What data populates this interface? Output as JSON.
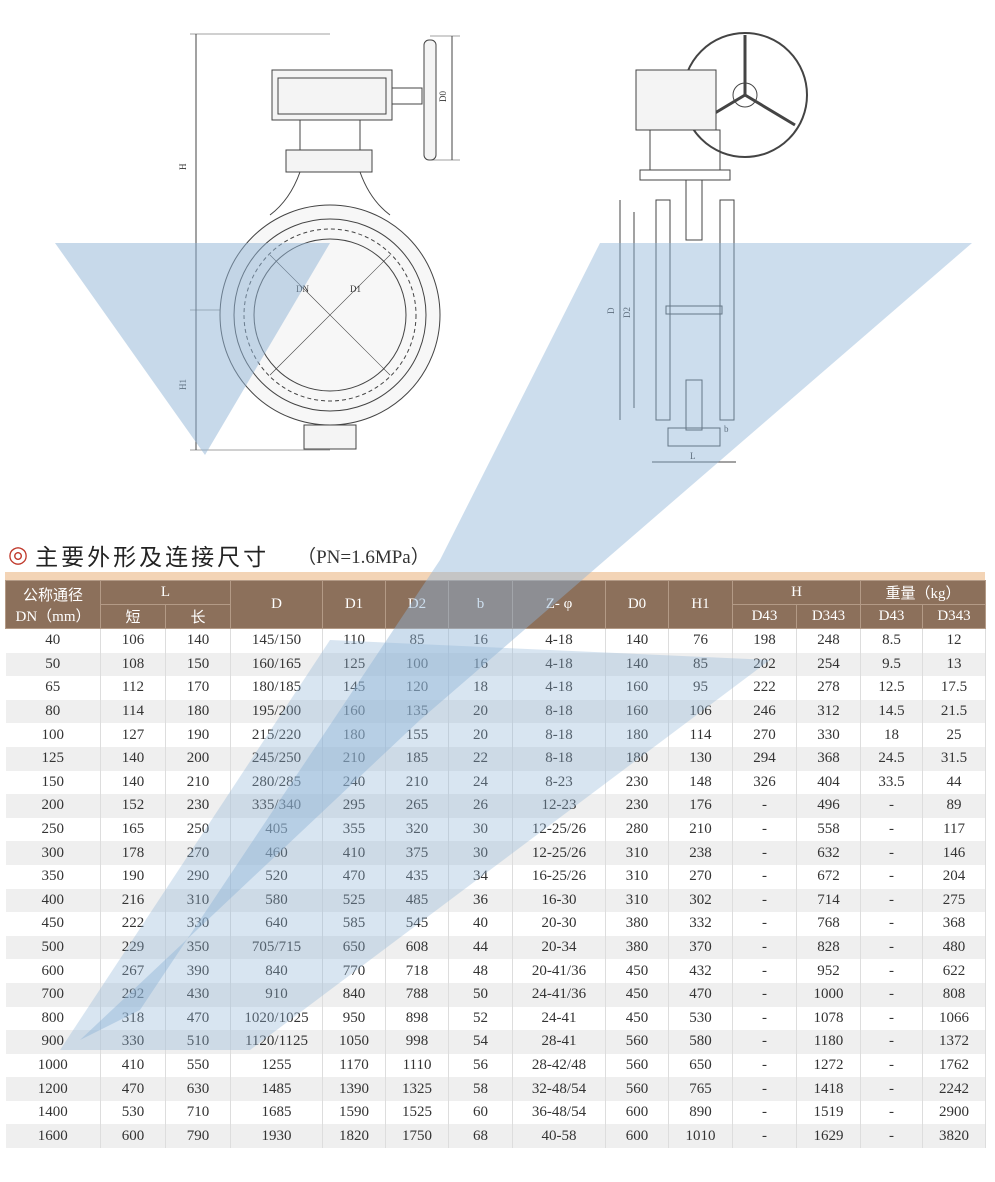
{
  "drawing": {
    "front_labels": {
      "H": "H",
      "D0": "D0",
      "DN": "DN",
      "D1": "D1",
      "H1": "H1"
    },
    "side_labels": {
      "D": "D",
      "D2": "D2",
      "b": "b",
      "L": "L"
    }
  },
  "section": {
    "mark": "◎",
    "title": "主要外形及连接尺寸",
    "pressure": "（PN=1.6MPa）"
  },
  "table": {
    "headers": {
      "dn": "公称通径",
      "dn_unit": "DN（mm）",
      "L": "L",
      "L_short": "短",
      "L_long": "长",
      "D": "D",
      "D1": "D1",
      "D2": "D2",
      "b": "b",
      "Z": "Z- φ",
      "D0": "D0",
      "H1": "H1",
      "H": "H",
      "H_D43": "D43",
      "H_D343": "D343",
      "weight": "重量（kg）",
      "W_D43": "D43",
      "W_D343": "D343"
    },
    "rows": [
      [
        "40",
        "106",
        "140",
        "145/150",
        "110",
        "85",
        "16",
        "4-18",
        "140",
        "76",
        "198",
        "248",
        "8.5",
        "12"
      ],
      [
        "50",
        "108",
        "150",
        "160/165",
        "125",
        "100",
        "16",
        "4-18",
        "140",
        "85",
        "202",
        "254",
        "9.5",
        "13"
      ],
      [
        "65",
        "112",
        "170",
        "180/185",
        "145",
        "120",
        "18",
        "4-18",
        "160",
        "95",
        "222",
        "278",
        "12.5",
        "17.5"
      ],
      [
        "80",
        "114",
        "180",
        "195/200",
        "160",
        "135",
        "20",
        "8-18",
        "160",
        "106",
        "246",
        "312",
        "14.5",
        "21.5"
      ],
      [
        "100",
        "127",
        "190",
        "215/220",
        "180",
        "155",
        "20",
        "8-18",
        "180",
        "114",
        "270",
        "330",
        "18",
        "25"
      ],
      [
        "125",
        "140",
        "200",
        "245/250",
        "210",
        "185",
        "22",
        "8-18",
        "180",
        "130",
        "294",
        "368",
        "24.5",
        "31.5"
      ],
      [
        "150",
        "140",
        "210",
        "280/285",
        "240",
        "210",
        "24",
        "8-23",
        "230",
        "148",
        "326",
        "404",
        "33.5",
        "44"
      ],
      [
        "200",
        "152",
        "230",
        "335/340",
        "295",
        "265",
        "26",
        "12-23",
        "230",
        "176",
        "-",
        "496",
        "-",
        "89"
      ],
      [
        "250",
        "165",
        "250",
        "405",
        "355",
        "320",
        "30",
        "12-25/26",
        "280",
        "210",
        "-",
        "558",
        "-",
        "117"
      ],
      [
        "300",
        "178",
        "270",
        "460",
        "410",
        "375",
        "30",
        "12-25/26",
        "310",
        "238",
        "-",
        "632",
        "-",
        "146"
      ],
      [
        "350",
        "190",
        "290",
        "520",
        "470",
        "435",
        "34",
        "16-25/26",
        "310",
        "270",
        "-",
        "672",
        "-",
        "204"
      ],
      [
        "400",
        "216",
        "310",
        "580",
        "525",
        "485",
        "36",
        "16-30",
        "310",
        "302",
        "-",
        "714",
        "-",
        "275"
      ],
      [
        "450",
        "222",
        "330",
        "640",
        "585",
        "545",
        "40",
        "20-30",
        "380",
        "332",
        "-",
        "768",
        "-",
        "368"
      ],
      [
        "500",
        "229",
        "350",
        "705/715",
        "650",
        "608",
        "44",
        "20-34",
        "380",
        "370",
        "-",
        "828",
        "-",
        "480"
      ],
      [
        "600",
        "267",
        "390",
        "840",
        "770",
        "718",
        "48",
        "20-41/36",
        "450",
        "432",
        "-",
        "952",
        "-",
        "622"
      ],
      [
        "700",
        "292",
        "430",
        "910",
        "840",
        "788",
        "50",
        "24-41/36",
        "450",
        "470",
        "-",
        "1000",
        "-",
        "808"
      ],
      [
        "800",
        "318",
        "470",
        "1020/1025",
        "950",
        "898",
        "52",
        "24-41",
        "450",
        "530",
        "-",
        "1078",
        "-",
        "1066"
      ],
      [
        "900",
        "330",
        "510",
        "1120/1125",
        "1050",
        "998",
        "54",
        "28-41",
        "560",
        "580",
        "-",
        "1180",
        "-",
        "1372"
      ],
      [
        "1000",
        "410",
        "550",
        "1255",
        "1170",
        "1110",
        "56",
        "28-42/48",
        "560",
        "650",
        "-",
        "1272",
        "-",
        "1762"
      ],
      [
        "1200",
        "470",
        "630",
        "1485",
        "1390",
        "1325",
        "58",
        "32-48/54",
        "560",
        "765",
        "-",
        "1418",
        "-",
        "2242"
      ],
      [
        "1400",
        "530",
        "710",
        "1685",
        "1590",
        "1525",
        "60",
        "36-48/54",
        "600",
        "890",
        "-",
        "1519",
        "-",
        "2900"
      ],
      [
        "1600",
        "600",
        "790",
        "1930",
        "1820",
        "1750",
        "68",
        "40-58",
        "600",
        "1010",
        "-",
        "1629",
        "-",
        "3820"
      ]
    ]
  },
  "colors": {
    "header": "#8c705b",
    "strip": "#f3d4b6",
    "watermark_blue": "#8fb4d6",
    "title_mark": "#c0392b"
  }
}
